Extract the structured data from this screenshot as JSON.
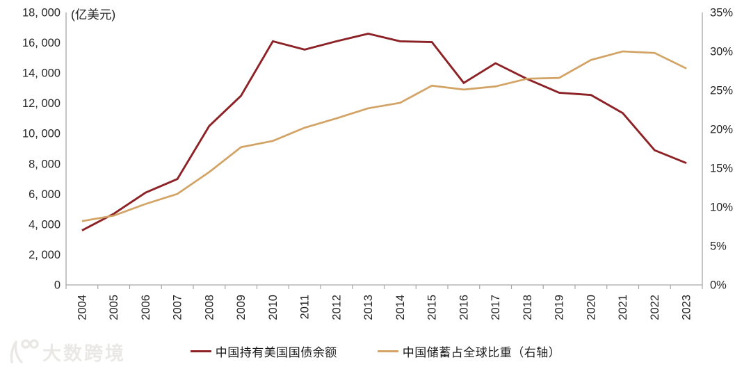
{
  "chart_data": {
    "type": "line",
    "title": "",
    "unit_label": "(亿美元)",
    "x": [
      "2004",
      "2005",
      "2006",
      "2007",
      "2008",
      "2009",
      "2010",
      "2011",
      "2012",
      "2013",
      "2014",
      "2015",
      "2016",
      "2017",
      "2018",
      "2019",
      "2020",
      "2021",
      "2022",
      "2023"
    ],
    "series": [
      {
        "name": "中国持有美国国债余额",
        "axis": "left",
        "color": "#8c2226",
        "values": [
          3600,
          4700,
          6100,
          7000,
          10500,
          12500,
          16100,
          15550,
          16100,
          16600,
          16100,
          16050,
          13350,
          14650,
          13600,
          12700,
          12550,
          11350,
          8900,
          8050
        ]
      },
      {
        "name": "中国储蓄占全球比重（右轴）",
        "axis": "right",
        "color": "#d2a365",
        "values": [
          8.2,
          8.9,
          10.4,
          11.7,
          14.5,
          17.7,
          18.5,
          20.2,
          21.4,
          22.7,
          23.4,
          25.6,
          25.1,
          25.5,
          26.5,
          26.6,
          28.9,
          30.0,
          29.8,
          27.8
        ]
      }
    ],
    "left_axis": {
      "min": 0,
      "max": 18000,
      "step": 2000,
      "tick_labels": [
        "0",
        "2, 000",
        "4, 000",
        "6, 000",
        "8, 000",
        "10, 000",
        "12, 000",
        "14, 000",
        "16, 000",
        "18, 000"
      ]
    },
    "right_axis": {
      "min": 0,
      "max": 35,
      "step": 5,
      "tick_labels": [
        "0%",
        "5%",
        "10%",
        "15%",
        "20%",
        "25%",
        "30%",
        "35%"
      ]
    },
    "grid": false,
    "legend_position": "bottom"
  },
  "legend": {
    "items": [
      {
        "label": "中国持有美国国债余额",
        "color": "#8c2226"
      },
      {
        "label": "中国储蓄占全球比重（右轴）",
        "color": "#d2a365"
      }
    ]
  },
  "watermark": {
    "text": "大数跨境",
    "color": "#eae8e4"
  },
  "colors": {
    "axis": "#a6a6a6",
    "text": "#262626",
    "background": "#ffffff"
  }
}
